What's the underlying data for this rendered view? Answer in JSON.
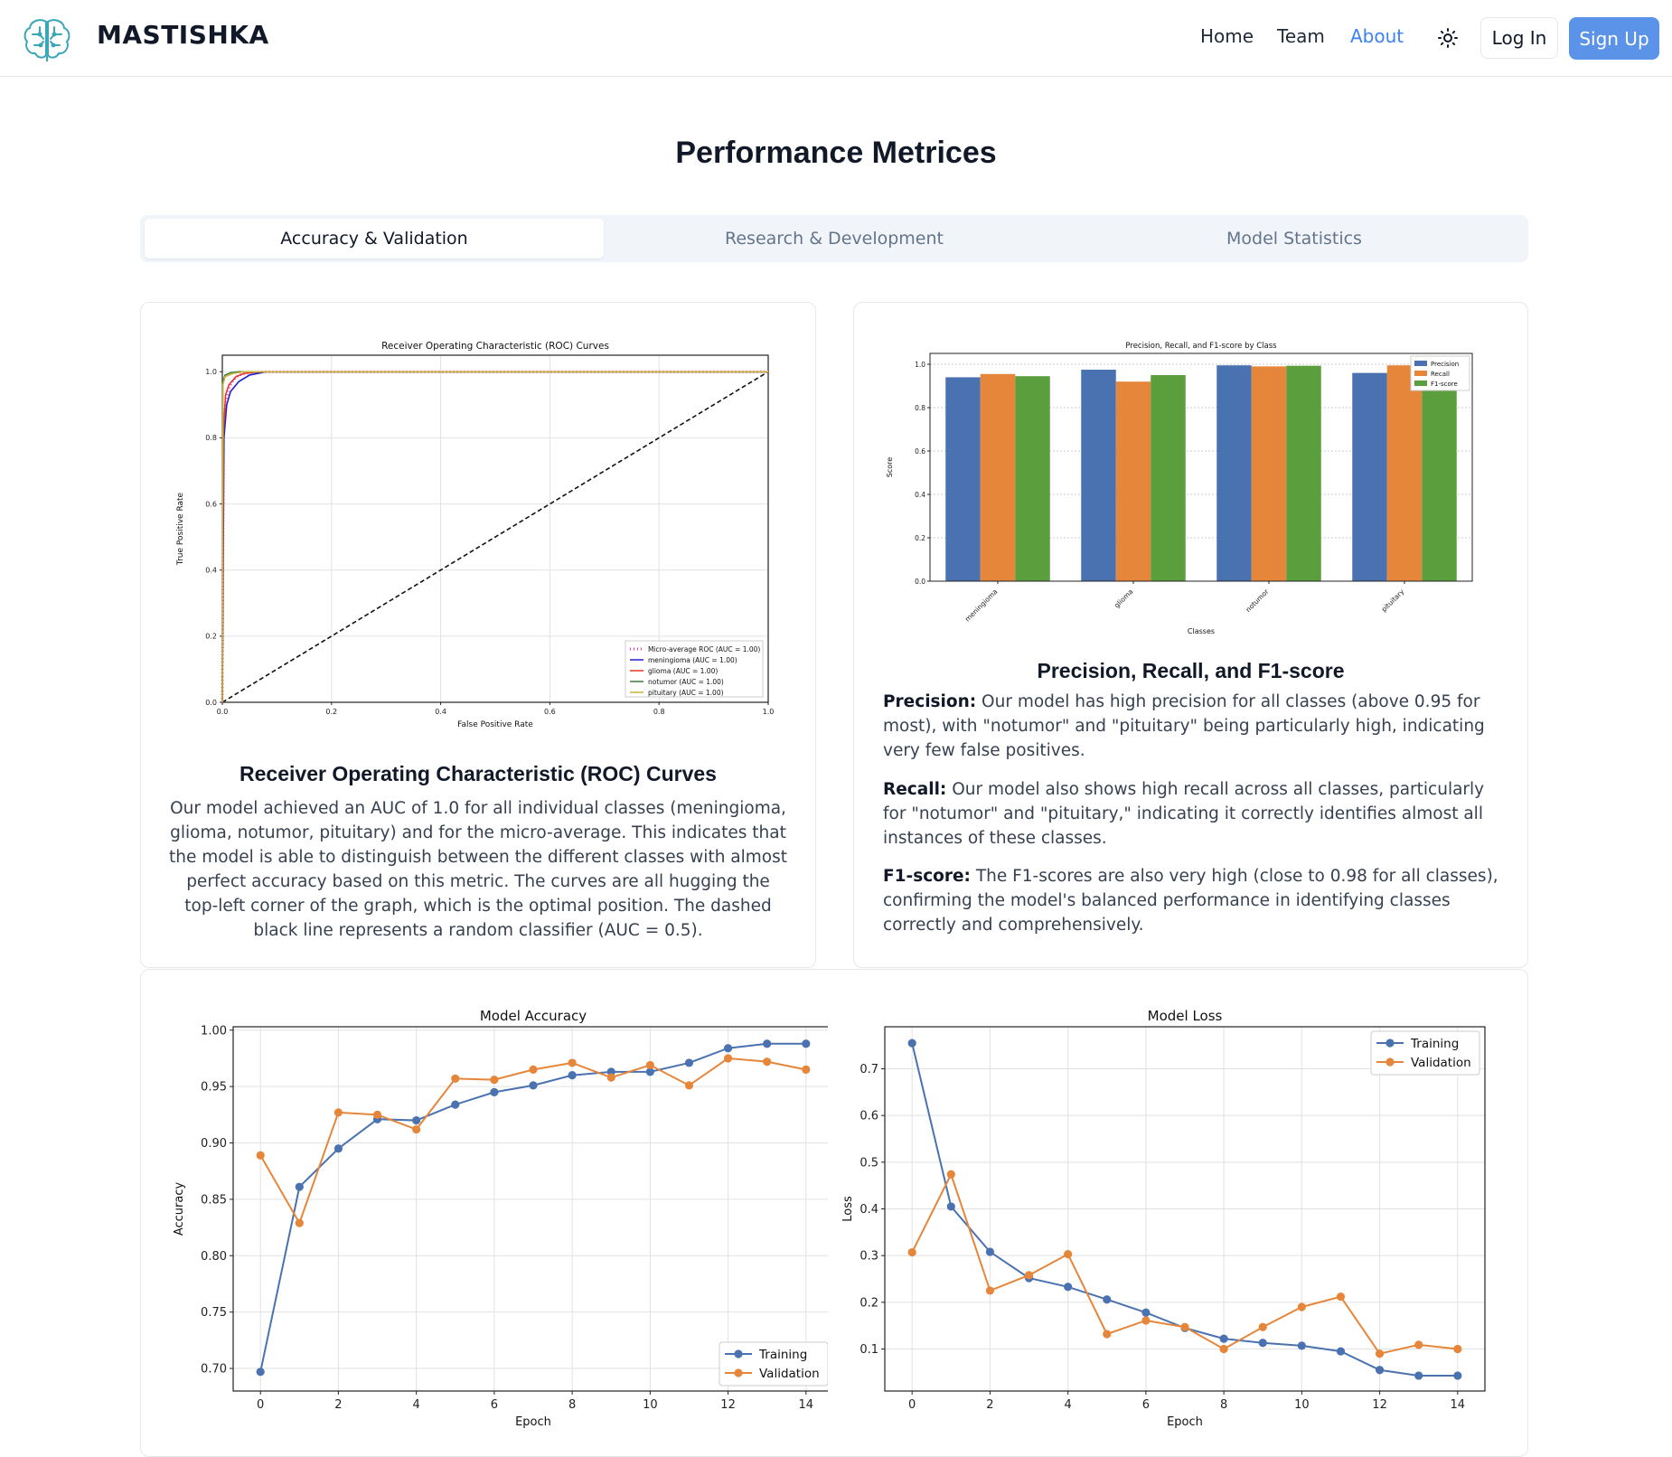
{
  "header": {
    "brand": "MASTISHKA",
    "nav": [
      "Home",
      "Team",
      "About"
    ],
    "login": "Log In",
    "signup": "Sign Up"
  },
  "main": {
    "title": "Performance Metrices",
    "tabs": [
      "Accuracy & Validation",
      "Research & Development",
      "Model Statistics"
    ],
    "roc": {
      "heading": "Receiver Operating Characteristic (ROC) Curves",
      "text": "Our model achieved an AUC of 1.0 for all individual classes (meningioma, glioma, notumor, pituitary) and for the micro-average. This indicates that the model is able to distinguish between the different classes with almost perfect accuracy based on this metric. The curves are all hugging the top-left corner of the graph, which is the optimal position. The dashed black line represents a random classifier (AUC = 0.5)."
    },
    "prf": {
      "heading": "Precision, Recall, and F1-score",
      "precision_label": "Precision:",
      "precision_text": " Our model has high precision for all classes (above 0.95 for most), with \"notumor\" and \"pituitary\" being particularly high, indicating very few false positives.",
      "recall_label": "Recall:",
      "recall_text": " Our model also shows high recall across all classes, particularly for \"notumor\" and \"pituitary,\" indicating it correctly identifies almost all instances of these classes.",
      "f1_label": "F1-score:",
      "f1_text": " The F1-scores are also very high (close to 0.98 for all classes), confirming the model's balanced performance in identifying classes correctly and comprehensively."
    }
  },
  "chart_data": [
    {
      "type": "line",
      "title": "Receiver Operating Characteristic (ROC) Curves",
      "xlabel": "False Positive Rate",
      "ylabel": "True Positive Rate",
      "xlim": [
        0,
        1
      ],
      "ylim": [
        0,
        1.05
      ],
      "xticks": [
        "0.0",
        "0.2",
        "0.4",
        "0.6",
        "0.8",
        "1.0"
      ],
      "yticks": [
        "0.0",
        "0.2",
        "0.4",
        "0.6",
        "0.8",
        "1.0"
      ],
      "series": [
        {
          "name": "Micro-average ROC (AUC = 1.00)",
          "color": "#ff33cc",
          "style": "dotted",
          "x": [
            0,
            0.002,
            0.006,
            0.012,
            0.02,
            0.03,
            0.05,
            0.08,
            1
          ],
          "y": [
            0,
            0.82,
            0.9,
            0.95,
            0.975,
            0.99,
            0.997,
            1,
            1
          ]
        },
        {
          "name": "meningioma (AUC = 1.00)",
          "color": "#1f1fd0",
          "x": [
            0,
            0.003,
            0.008,
            0.015,
            0.03,
            0.05,
            0.08,
            1
          ],
          "y": [
            0,
            0.8,
            0.9,
            0.94,
            0.97,
            0.99,
            1,
            1
          ]
        },
        {
          "name": "glioma (AUC = 1.00)",
          "color": "#e8352e",
          "x": [
            0,
            0.002,
            0.006,
            0.012,
            0.025,
            0.04,
            0.07,
            1
          ],
          "y": [
            0,
            0.82,
            0.93,
            0.96,
            0.985,
            0.995,
            1,
            1
          ]
        },
        {
          "name": "notumor (AUC = 1.00)",
          "color": "#3d7a3d",
          "x": [
            0,
            0.001,
            0.005,
            0.015,
            0.03,
            1
          ],
          "y": [
            0,
            0.97,
            0.99,
            0.997,
            1,
            1
          ]
        },
        {
          "name": "pituitary (AUC = 1.00)",
          "color": "#c8b43a",
          "x": [
            0,
            0.001,
            0.005,
            0.02,
            0.04,
            1
          ],
          "y": [
            0,
            0.96,
            0.985,
            0.995,
            1,
            1
          ]
        }
      ],
      "reference": {
        "x": [
          0,
          1
        ],
        "y": [
          0,
          1
        ],
        "style": "dashed"
      },
      "grid": true,
      "legend": "lower-right"
    },
    {
      "type": "bar",
      "title": "Precision, Recall, and F1-score by Class",
      "xlabel": "Classes",
      "ylabel": "Score",
      "ylim": [
        0,
        1.05
      ],
      "categories": [
        "meningioma",
        "glioma",
        "notumor",
        "pituitary"
      ],
      "yticks": [
        "0.0",
        "0.2",
        "0.4",
        "0.6",
        "0.8",
        "1.0"
      ],
      "series": [
        {
          "name": "Precision",
          "color": "#4a72b0",
          "values": [
            0.94,
            0.975,
            0.995,
            0.96
          ]
        },
        {
          "name": "Recall",
          "color": "#e6863a",
          "values": [
            0.955,
            0.92,
            0.99,
            0.995
          ]
        },
        {
          "name": "F1-score",
          "color": "#5a9e3e",
          "values": [
            0.945,
            0.95,
            0.993,
            0.978
          ]
        }
      ],
      "grid": true,
      "legend": "top-right"
    },
    {
      "type": "line",
      "title": "Model Accuracy",
      "xlabel": "Epoch",
      "ylabel": "Accuracy",
      "ylim": [
        0.68,
        1.003
      ],
      "x": [
        0,
        1,
        2,
        3,
        4,
        5,
        6,
        7,
        8,
        9,
        10,
        11,
        12,
        13,
        14
      ],
      "xticks": [
        "0",
        "2",
        "4",
        "6",
        "8",
        "10",
        "12",
        "14"
      ],
      "yticks": [
        "0.70",
        "0.75",
        "0.80",
        "0.85",
        "0.90",
        "0.95",
        "1.00"
      ],
      "series": [
        {
          "name": "Training",
          "color": "#4a72b0",
          "values": [
            0.697,
            0.861,
            0.895,
            0.921,
            0.92,
            0.934,
            0.945,
            0.951,
            0.96,
            0.963,
            0.963,
            0.971,
            0.984,
            0.988,
            0.988
          ]
        },
        {
          "name": "Validation",
          "color": "#e6863a",
          "values": [
            0.889,
            0.829,
            0.927,
            0.925,
            0.912,
            0.957,
            0.956,
            0.965,
            0.971,
            0.958,
            0.969,
            0.951,
            0.975,
            0.972,
            0.965
          ]
        }
      ],
      "grid": true,
      "legend": "lower-right"
    },
    {
      "type": "line",
      "title": "Model Loss",
      "xlabel": "Epoch",
      "ylabel": "Loss",
      "ylim": [
        0.01,
        0.79
      ],
      "x": [
        0,
        1,
        2,
        3,
        4,
        5,
        6,
        7,
        8,
        9,
        10,
        11,
        12,
        13,
        14
      ],
      "xticks": [
        "0",
        "2",
        "4",
        "6",
        "8",
        "10",
        "12",
        "14"
      ],
      "yticks": [
        "0.1",
        "0.2",
        "0.3",
        "0.4",
        "0.5",
        "0.6",
        "0.7"
      ],
      "series": [
        {
          "name": "Training",
          "color": "#4a72b0",
          "values": [
            0.755,
            0.405,
            0.308,
            0.252,
            0.233,
            0.206,
            0.178,
            0.145,
            0.122,
            0.113,
            0.107,
            0.095,
            0.055,
            0.043,
            0.043
          ]
        },
        {
          "name": "Validation",
          "color": "#e6863a",
          "values": [
            0.307,
            0.474,
            0.225,
            0.258,
            0.303,
            0.132,
            0.161,
            0.147,
            0.1,
            0.147,
            0.19,
            0.212,
            0.09,
            0.109,
            0.1
          ]
        }
      ],
      "grid": true,
      "legend": "top-right"
    }
  ]
}
